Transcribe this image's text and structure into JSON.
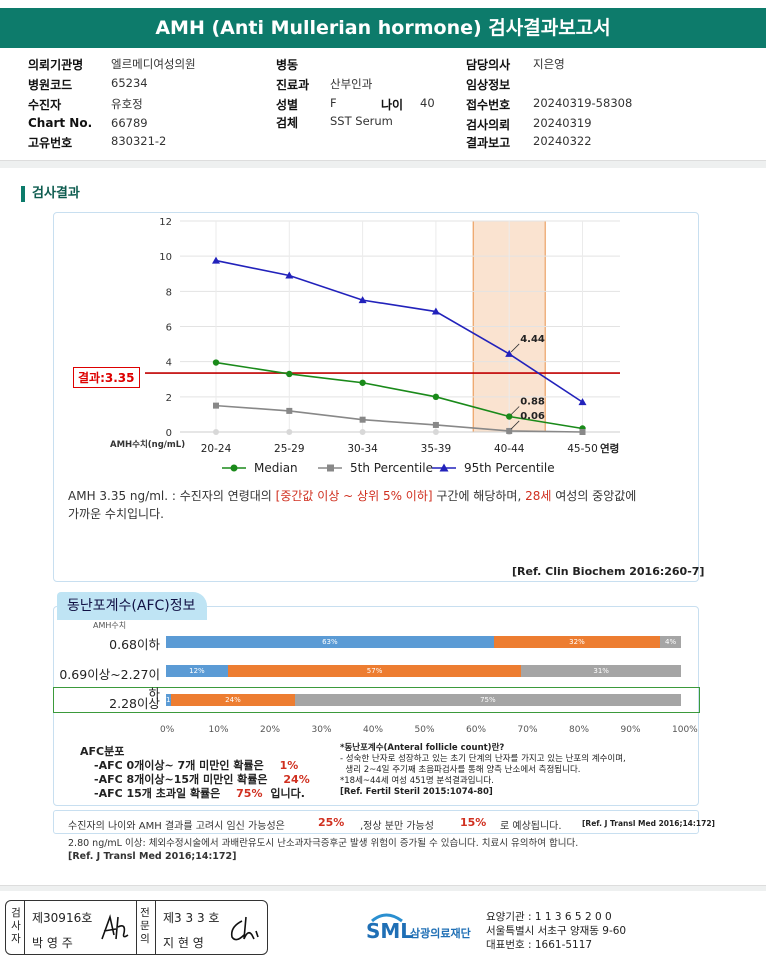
{
  "title": "AMH (Anti Mullerian hormone) 검사결과보고서",
  "info": {
    "institution_label": "의뢰기관명",
    "institution": "엘르메디여성의원",
    "hospital_code_label": "병원코드",
    "hospital_code": "65234",
    "patient_label": "수진자",
    "patient": "유호정",
    "chart_label": "Chart No.",
    "chart_no": "66789",
    "unique_label": "고유번호",
    "unique_no": "830321-2",
    "ward_label": "병동",
    "ward": "",
    "dept_label": "진료과",
    "dept": "산부인과",
    "sex_label": "성별",
    "sex": "F",
    "age_label": "나이",
    "age": "40",
    "specimen_label": "검체",
    "specimen": "SST Serum",
    "doctor_label": "담당의사",
    "doctor": "지은영",
    "clinical_label": "임상정보",
    "clinical": "",
    "receipt_label": "접수번호",
    "receipt": "20240319-58308",
    "request_label": "검사의뢰",
    "request": "20240319",
    "report_label": "결과보고",
    "report": "20240322"
  },
  "section_title": "검사결과",
  "result_label": "결과:3.35",
  "chart_data": {
    "type": "line",
    "categories": [
      "20-24",
      "25-29",
      "30-34",
      "35-39",
      "40-44",
      "45-50"
    ],
    "x_axis_suffix": "연령",
    "ylabel": "AMH수치(ng/mL)",
    "ylim": [
      0,
      12
    ],
    "yticks": [
      "0",
      "2",
      "4",
      "6",
      "8",
      "10",
      "12"
    ],
    "result_value": 3.35,
    "highlight_category": "40-44",
    "series": [
      {
        "name": "Median",
        "color": "#1a8a1a",
        "marker": "circle",
        "values": [
          3.95,
          3.3,
          2.8,
          2.0,
          0.88,
          0.2
        ]
      },
      {
        "name": "5th Percentile",
        "color": "#888888",
        "marker": "square",
        "values": [
          1.5,
          1.2,
          0.7,
          0.4,
          0.06,
          0.0
        ]
      },
      {
        "name": "95th Percentile",
        "color": "#2222bb",
        "marker": "triangle",
        "values": [
          9.75,
          8.9,
          7.5,
          6.85,
          4.44,
          1.7
        ]
      }
    ],
    "data_labels": [
      "4.44",
      "0.88",
      "0.06"
    ]
  },
  "interpretation": {
    "p1": "AMH  3.35 ng/ml. : 수진자의 연령대의 ",
    "range": "[중간값 이상 ~ 상위 5% 이하]",
    "p2": " 구간에 해당하며, ",
    "age": "28세",
    "p3": " 여성의 중앙값에",
    "p4": "가까운 수치입니다."
  },
  "ref1": "[Ref. Clin Biochem 2016:260-7]",
  "afc": {
    "tab_title": "동난포계수(AFC)정보",
    "amh_label": "AMH수치",
    "rows": [
      {
        "label": "0.68이하",
        "segments": [
          {
            "pct": 63,
            "text": "63%",
            "color": "#5b9bd5"
          },
          {
            "pct": 32,
            "text": "32%",
            "color": "#ed7d31"
          },
          {
            "pct": 4,
            "text": "4%",
            "color": "#a5a5a5"
          }
        ]
      },
      {
        "label": "0.69이상~2.27이하",
        "segments": [
          {
            "pct": 12,
            "text": "12%",
            "color": "#5b9bd5"
          },
          {
            "pct": 57,
            "text": "57%",
            "color": "#ed7d31"
          },
          {
            "pct": 31,
            "text": "31%",
            "color": "#a5a5a5"
          }
        ]
      },
      {
        "label": "2.28이상",
        "segments": [
          {
            "pct": 1,
            "text": "1%",
            "color": "#5b9bd5"
          },
          {
            "pct": 24,
            "text": "24%",
            "color": "#ed7d31"
          },
          {
            "pct": 75,
            "text": "75%",
            "color": "#a5a5a5"
          }
        ]
      }
    ],
    "xticks": [
      "0%",
      "10%",
      "20%",
      "30%",
      "40%",
      "50%",
      "60%",
      "70%",
      "80%",
      "90%",
      "100%"
    ],
    "dist_title": "AFC분포",
    "dist": [
      {
        "text": "-AFC  0개이상~ 7개 미만인 확률은",
        "val": "1%",
        "tail": ""
      },
      {
        "text": "-AFC  8개이상~15개 미만인 확률은",
        "val": "24%",
        "tail": ""
      },
      {
        "text": "-AFC  15개 초과일 확률은",
        "val": "75%",
        "tail": "입니다."
      }
    ],
    "def_title": "*동난포계수(Anteral follicle count)란?",
    "def_line1": "- 성숙한 난자로 성장하고 있는 초기 단계의 난자를 가지고 있는 난포의 계수이며,",
    "def_line2": "  생리 2~4일 주기째 초음파검사를 통해 양측 난소에서 측정됩니다.",
    "def_line3": "*18세~44세 여성 451명 분석결과입니다.",
    "def_ref": "[Ref. Fertil Steril 2015:1074-80]"
  },
  "prob": {
    "p1": "수진자의 나이와 AMH 결과를 고려시 임신 가능성은",
    "v1": "25%",
    "p2": ",정상 분만 가능성",
    "v2": "15%",
    "p3": "로 예상됩니다.",
    "ref": "[Ref. J Transl Med 2016;14:172]"
  },
  "note": {
    "line1": "2.80 ng/mL 이상: 체외수정시술에서 과배란유도시 난소과자극증후군 발생 위험이 증가될 수 있습니다. 치료시 유의하여 합니다.",
    "ref": "[Ref. J Transl Med 2016;14:172]"
  },
  "sign": {
    "test_label": "검사자",
    "test_id": "제30916호",
    "test_name": "박 영 주",
    "conf_label": "전문의",
    "conf_id": "제3 3 3 호",
    "conf_name": "지 현 영"
  },
  "lab": {
    "logo": "SML",
    "name": "삼광의료재단",
    "code": "요양기관 : 1 1 3 6 5 2 0 0",
    "address": "서울특별시 서초구 양재동 9-60",
    "phone": "대표번호 : 1661-5117"
  }
}
